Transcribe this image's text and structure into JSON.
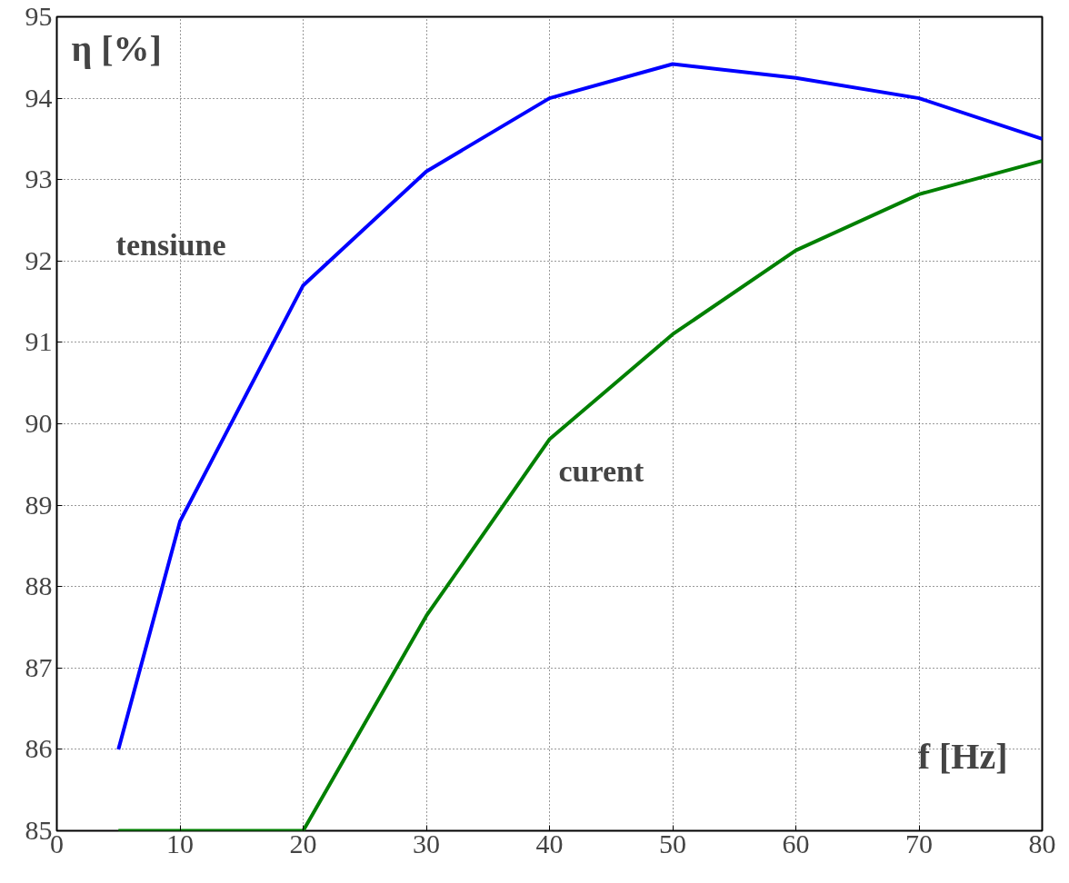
{
  "chart_data": {
    "type": "line",
    "xlabel": "f [Hz]",
    "ylabel": "η [%]",
    "xlim": [
      0,
      80
    ],
    "ylim": [
      85,
      95
    ],
    "xticks": [
      0,
      10,
      20,
      30,
      40,
      50,
      60,
      70,
      80
    ],
    "yticks": [
      85,
      86,
      87,
      88,
      89,
      90,
      91,
      92,
      93,
      94,
      95
    ],
    "grid": true,
    "line_style": "solid",
    "marker": "none",
    "series": [
      {
        "name": "tensiune",
        "color": "#0000ff",
        "x": [
          5,
          10,
          20,
          30,
          40,
          50,
          60,
          70,
          80
        ],
        "values": [
          86.0,
          88.8,
          91.7,
          93.1,
          94.0,
          94.42,
          94.25,
          94.0,
          93.5
        ]
      },
      {
        "name": "curent",
        "color": "#008000",
        "x": [
          5,
          10,
          20,
          30,
          40,
          50,
          60,
          70,
          80
        ],
        "values": [
          85.0,
          85.0,
          85.0,
          87.64,
          89.81,
          91.1,
          92.13,
          92.82,
          93.23
        ]
      }
    ]
  }
}
